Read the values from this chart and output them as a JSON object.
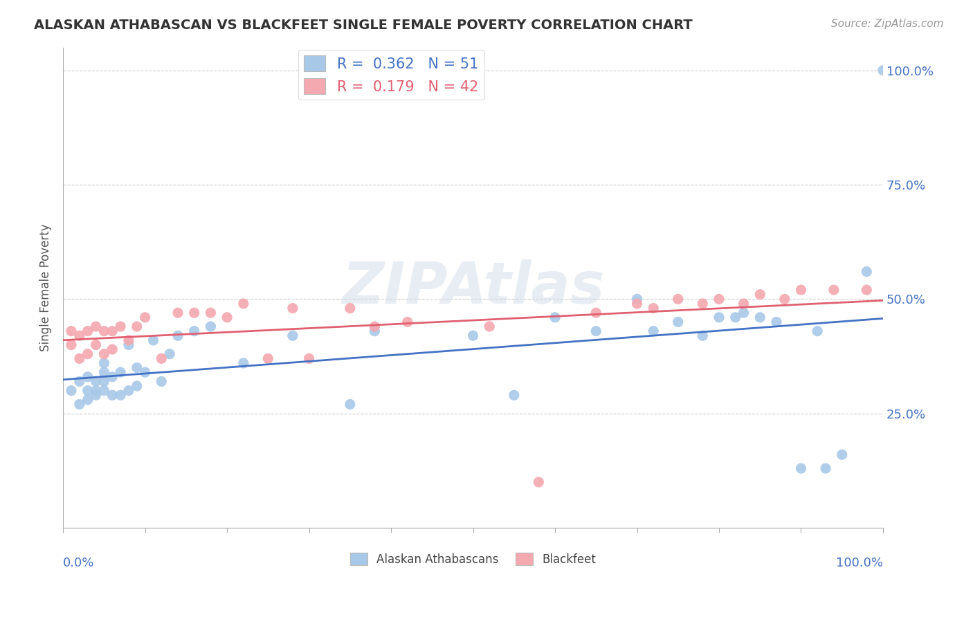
{
  "title": "ALASKAN ATHABASCAN VS BLACKFEET SINGLE FEMALE POVERTY CORRELATION CHART",
  "source": "Source: ZipAtlas.com",
  "ylabel": "Single Female Poverty",
  "ytick_labels": [
    "25.0%",
    "50.0%",
    "75.0%",
    "100.0%"
  ],
  "ytick_values": [
    0.25,
    0.5,
    0.75,
    1.0
  ],
  "legend_label_blue": "Alaskan Athabascans",
  "legend_label_pink": "Blackfeet",
  "r_blue": 0.362,
  "n_blue": 51,
  "r_pink": 0.179,
  "n_pink": 42,
  "watermark": "ZIPAtlas",
  "blue_color": "#a8c8e8",
  "pink_color": "#f4a8b0",
  "blue_line_color": "#4472c4",
  "pink_line_color": "#e06070",
  "background_color": "#ffffff",
  "blue_x": [
    0.01,
    0.02,
    0.02,
    0.03,
    0.03,
    0.03,
    0.04,
    0.04,
    0.04,
    0.05,
    0.05,
    0.05,
    0.05,
    0.06,
    0.06,
    0.07,
    0.07,
    0.08,
    0.08,
    0.09,
    0.09,
    0.1,
    0.11,
    0.12,
    0.13,
    0.14,
    0.16,
    0.18,
    0.22,
    0.28,
    0.35,
    0.38,
    0.5,
    0.55,
    0.6,
    0.65,
    0.7,
    0.72,
    0.75,
    0.78,
    0.8,
    0.82,
    0.83,
    0.85,
    0.87,
    0.9,
    0.92,
    0.93,
    0.95,
    0.98,
    1.0
  ],
  "blue_y": [
    0.3,
    0.27,
    0.32,
    0.28,
    0.3,
    0.33,
    0.29,
    0.32,
    0.3,
    0.3,
    0.32,
    0.34,
    0.36,
    0.29,
    0.33,
    0.29,
    0.34,
    0.3,
    0.4,
    0.31,
    0.35,
    0.34,
    0.41,
    0.32,
    0.38,
    0.42,
    0.43,
    0.44,
    0.36,
    0.42,
    0.27,
    0.43,
    0.42,
    0.29,
    0.46,
    0.43,
    0.5,
    0.43,
    0.45,
    0.42,
    0.46,
    0.46,
    0.47,
    0.46,
    0.45,
    0.13,
    0.43,
    0.13,
    0.16,
    0.56,
    1.0
  ],
  "pink_x": [
    0.01,
    0.01,
    0.02,
    0.02,
    0.03,
    0.03,
    0.04,
    0.04,
    0.05,
    0.05,
    0.06,
    0.06,
    0.07,
    0.08,
    0.09,
    0.1,
    0.12,
    0.14,
    0.16,
    0.18,
    0.2,
    0.22,
    0.25,
    0.28,
    0.3,
    0.35,
    0.38,
    0.42,
    0.52,
    0.58,
    0.65,
    0.7,
    0.72,
    0.75,
    0.78,
    0.8,
    0.83,
    0.85,
    0.88,
    0.9,
    0.94,
    0.98
  ],
  "pink_y": [
    0.4,
    0.43,
    0.37,
    0.42,
    0.38,
    0.43,
    0.4,
    0.44,
    0.38,
    0.43,
    0.39,
    0.43,
    0.44,
    0.41,
    0.44,
    0.46,
    0.37,
    0.47,
    0.47,
    0.47,
    0.46,
    0.49,
    0.37,
    0.48,
    0.37,
    0.48,
    0.44,
    0.45,
    0.44,
    0.1,
    0.47,
    0.49,
    0.48,
    0.5,
    0.49,
    0.5,
    0.49,
    0.51,
    0.5,
    0.52,
    0.52,
    0.52
  ],
  "xlim": [
    0,
    1.0
  ],
  "ylim": [
    0,
    1.05
  ],
  "title_fontsize": 14,
  "source_fontsize": 11,
  "tick_label_fontsize": 13,
  "ylabel_fontsize": 12
}
